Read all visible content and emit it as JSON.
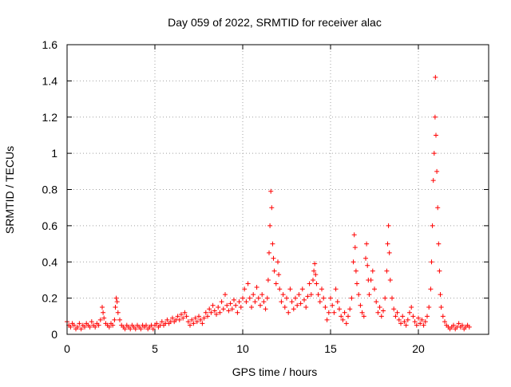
{
  "chart_data": {
    "type": "scatter",
    "title": "Day 059 of 2022, SRMTID for receiver alac",
    "xlabel": "GPS time / hours",
    "ylabel": "SRMTID / TECUs",
    "xlim": [
      0,
      24
    ],
    "ylim": [
      0,
      1.6
    ],
    "x_ticks": [
      0,
      5,
      10,
      15,
      20
    ],
    "x_tick_labels": [
      "0",
      "5",
      "10",
      "15",
      "20"
    ],
    "y_ticks": [
      0,
      0.2,
      0.4,
      0.6,
      0.8,
      1.0,
      1.2,
      1.4,
      1.6
    ],
    "y_tick_labels": [
      "0",
      "0.2",
      "0.4",
      "0.6",
      "0.8",
      "1",
      "1.2",
      "1.4",
      "1.6"
    ],
    "grid": true,
    "marker": "+",
    "marker_color": "#ff0000",
    "series": [
      {
        "name": "SRMTID",
        "points": [
          [
            0.0,
            0.07
          ],
          [
            0.1,
            0.05
          ],
          [
            0.2,
            0.04
          ],
          [
            0.3,
            0.06
          ],
          [
            0.4,
            0.05
          ],
          [
            0.5,
            0.03
          ],
          [
            0.6,
            0.04
          ],
          [
            0.7,
            0.06
          ],
          [
            0.8,
            0.03
          ],
          [
            0.9,
            0.05
          ],
          [
            1.0,
            0.04
          ],
          [
            1.1,
            0.06
          ],
          [
            1.2,
            0.05
          ],
          [
            1.3,
            0.04
          ],
          [
            1.4,
            0.07
          ],
          [
            1.5,
            0.05
          ],
          [
            1.6,
            0.04
          ],
          [
            1.7,
            0.06
          ],
          [
            1.8,
            0.05
          ],
          [
            1.9,
            0.08
          ],
          [
            2.0,
            0.15
          ],
          [
            2.05,
            0.12
          ],
          [
            2.1,
            0.09
          ],
          [
            2.2,
            0.06
          ],
          [
            2.3,
            0.05
          ],
          [
            2.4,
            0.04
          ],
          [
            2.5,
            0.06
          ],
          [
            2.6,
            0.05
          ],
          [
            2.7,
            0.08
          ],
          [
            2.75,
            0.15
          ],
          [
            2.8,
            0.2
          ],
          [
            2.85,
            0.18
          ],
          [
            2.9,
            0.12
          ],
          [
            3.0,
            0.08
          ],
          [
            3.1,
            0.05
          ],
          [
            3.2,
            0.04
          ],
          [
            3.3,
            0.03
          ],
          [
            3.4,
            0.05
          ],
          [
            3.5,
            0.04
          ],
          [
            3.6,
            0.03
          ],
          [
            3.7,
            0.05
          ],
          [
            3.8,
            0.04
          ],
          [
            3.9,
            0.03
          ],
          [
            4.0,
            0.05
          ],
          [
            4.1,
            0.04
          ],
          [
            4.2,
            0.03
          ],
          [
            4.3,
            0.05
          ],
          [
            4.4,
            0.04
          ],
          [
            4.5,
            0.05
          ],
          [
            4.6,
            0.03
          ],
          [
            4.7,
            0.04
          ],
          [
            4.8,
            0.05
          ],
          [
            4.9,
            0.03
          ],
          [
            5.0,
            0.05
          ],
          [
            5.1,
            0.06
          ],
          [
            5.2,
            0.04
          ],
          [
            5.3,
            0.05
          ],
          [
            5.4,
            0.07
          ],
          [
            5.5,
            0.05
          ],
          [
            5.6,
            0.06
          ],
          [
            5.7,
            0.08
          ],
          [
            5.8,
            0.06
          ],
          [
            5.9,
            0.07
          ],
          [
            6.0,
            0.09
          ],
          [
            6.1,
            0.07
          ],
          [
            6.2,
            0.08
          ],
          [
            6.3,
            0.1
          ],
          [
            6.4,
            0.08
          ],
          [
            6.5,
            0.11
          ],
          [
            6.6,
            0.09
          ],
          [
            6.7,
            0.12
          ],
          [
            6.8,
            0.1
          ],
          [
            6.9,
            0.07
          ],
          [
            7.0,
            0.05
          ],
          [
            7.1,
            0.08
          ],
          [
            7.2,
            0.06
          ],
          [
            7.3,
            0.09
          ],
          [
            7.4,
            0.07
          ],
          [
            7.5,
            0.1
          ],
          [
            7.6,
            0.08
          ],
          [
            7.7,
            0.06
          ],
          [
            7.8,
            0.09
          ],
          [
            7.9,
            0.12
          ],
          [
            8.0,
            0.1
          ],
          [
            8.1,
            0.14
          ],
          [
            8.2,
            0.12
          ],
          [
            8.3,
            0.16
          ],
          [
            8.4,
            0.13
          ],
          [
            8.5,
            0.11
          ],
          [
            8.6,
            0.15
          ],
          [
            8.7,
            0.12
          ],
          [
            8.8,
            0.18
          ],
          [
            8.9,
            0.14
          ],
          [
            9.0,
            0.22
          ],
          [
            9.1,
            0.16
          ],
          [
            9.2,
            0.13
          ],
          [
            9.3,
            0.17
          ],
          [
            9.4,
            0.14
          ],
          [
            9.5,
            0.19
          ],
          [
            9.6,
            0.16
          ],
          [
            9.7,
            0.12
          ],
          [
            9.8,
            0.18
          ],
          [
            9.9,
            0.15
          ],
          [
            10.0,
            0.2
          ],
          [
            10.1,
            0.25
          ],
          [
            10.2,
            0.18
          ],
          [
            10.3,
            0.28
          ],
          [
            10.4,
            0.2
          ],
          [
            10.5,
            0.15
          ],
          [
            10.6,
            0.22
          ],
          [
            10.7,
            0.18
          ],
          [
            10.8,
            0.26
          ],
          [
            10.9,
            0.2
          ],
          [
            11.0,
            0.16
          ],
          [
            11.1,
            0.22
          ],
          [
            11.2,
            0.18
          ],
          [
            11.3,
            0.14
          ],
          [
            11.4,
            0.2
          ],
          [
            11.45,
            0.3
          ],
          [
            11.5,
            0.45
          ],
          [
            11.55,
            0.6
          ],
          [
            11.6,
            0.79
          ],
          [
            11.65,
            0.7
          ],
          [
            11.7,
            0.5
          ],
          [
            11.75,
            0.42
          ],
          [
            11.8,
            0.35
          ],
          [
            11.9,
            0.28
          ],
          [
            12.0,
            0.4
          ],
          [
            12.05,
            0.33
          ],
          [
            12.1,
            0.25
          ],
          [
            12.2,
            0.18
          ],
          [
            12.3,
            0.22
          ],
          [
            12.4,
            0.15
          ],
          [
            12.5,
            0.2
          ],
          [
            12.6,
            0.12
          ],
          [
            12.7,
            0.25
          ],
          [
            12.8,
            0.18
          ],
          [
            12.9,
            0.14
          ],
          [
            13.0,
            0.2
          ],
          [
            13.1,
            0.16
          ],
          [
            13.2,
            0.22
          ],
          [
            13.3,
            0.17
          ],
          [
            13.4,
            0.25
          ],
          [
            13.5,
            0.19
          ],
          [
            13.6,
            0.15
          ],
          [
            13.7,
            0.21
          ],
          [
            13.8,
            0.28
          ],
          [
            13.9,
            0.22
          ],
          [
            14.0,
            0.3
          ],
          [
            14.05,
            0.35
          ],
          [
            14.1,
            0.39
          ],
          [
            14.15,
            0.33
          ],
          [
            14.2,
            0.28
          ],
          [
            14.3,
            0.22
          ],
          [
            14.4,
            0.18
          ],
          [
            14.5,
            0.25
          ],
          [
            14.6,
            0.2
          ],
          [
            14.7,
            0.15
          ],
          [
            14.8,
            0.08
          ],
          [
            14.9,
            0.12
          ],
          [
            15.0,
            0.2
          ],
          [
            15.1,
            0.16
          ],
          [
            15.2,
            0.12
          ],
          [
            15.3,
            0.25
          ],
          [
            15.4,
            0.18
          ],
          [
            15.5,
            0.14
          ],
          [
            15.6,
            0.1
          ],
          [
            15.7,
            0.08
          ],
          [
            15.8,
            0.12
          ],
          [
            15.9,
            0.06
          ],
          [
            16.0,
            0.1
          ],
          [
            16.1,
            0.14
          ],
          [
            16.2,
            0.2
          ],
          [
            16.3,
            0.4
          ],
          [
            16.35,
            0.55
          ],
          [
            16.4,
            0.48
          ],
          [
            16.45,
            0.35
          ],
          [
            16.5,
            0.28
          ],
          [
            16.6,
            0.22
          ],
          [
            16.7,
            0.16
          ],
          [
            16.8,
            0.12
          ],
          [
            16.9,
            0.1
          ],
          [
            17.0,
            0.42
          ],
          [
            17.05,
            0.5
          ],
          [
            17.1,
            0.38
          ],
          [
            17.15,
            0.3
          ],
          [
            17.2,
            0.22
          ],
          [
            17.3,
            0.3
          ],
          [
            17.4,
            0.35
          ],
          [
            17.5,
            0.25
          ],
          [
            17.6,
            0.18
          ],
          [
            17.7,
            0.12
          ],
          [
            17.8,
            0.15
          ],
          [
            17.9,
            0.1
          ],
          [
            18.0,
            0.13
          ],
          [
            18.1,
            0.2
          ],
          [
            18.2,
            0.35
          ],
          [
            18.25,
            0.5
          ],
          [
            18.3,
            0.6
          ],
          [
            18.35,
            0.45
          ],
          [
            18.4,
            0.3
          ],
          [
            18.5,
            0.2
          ],
          [
            18.6,
            0.14
          ],
          [
            18.7,
            0.1
          ],
          [
            18.8,
            0.12
          ],
          [
            18.9,
            0.08
          ],
          [
            19.0,
            0.06
          ],
          [
            19.1,
            0.1
          ],
          [
            19.2,
            0.07
          ],
          [
            19.3,
            0.05
          ],
          [
            19.4,
            0.08
          ],
          [
            19.5,
            0.12
          ],
          [
            19.6,
            0.15
          ],
          [
            19.7,
            0.1
          ],
          [
            19.8,
            0.07
          ],
          [
            19.9,
            0.05
          ],
          [
            20.0,
            0.09
          ],
          [
            20.1,
            0.06
          ],
          [
            20.2,
            0.08
          ],
          [
            20.3,
            0.05
          ],
          [
            20.4,
            0.07
          ],
          [
            20.5,
            0.1
          ],
          [
            20.6,
            0.15
          ],
          [
            20.7,
            0.25
          ],
          [
            20.75,
            0.4
          ],
          [
            20.8,
            0.6
          ],
          [
            20.85,
            0.85
          ],
          [
            20.9,
            1.0
          ],
          [
            20.95,
            1.2
          ],
          [
            20.97,
            1.42
          ],
          [
            21.0,
            1.1
          ],
          [
            21.05,
            0.9
          ],
          [
            21.1,
            0.7
          ],
          [
            21.15,
            0.5
          ],
          [
            21.2,
            0.35
          ],
          [
            21.25,
            0.22
          ],
          [
            21.3,
            0.15
          ],
          [
            21.4,
            0.1
          ],
          [
            21.5,
            0.07
          ],
          [
            21.6,
            0.05
          ],
          [
            21.7,
            0.04
          ],
          [
            21.8,
            0.03
          ],
          [
            21.9,
            0.04
          ],
          [
            22.0,
            0.05
          ],
          [
            22.1,
            0.03
          ],
          [
            22.2,
            0.04
          ],
          [
            22.3,
            0.06
          ],
          [
            22.4,
            0.04
          ],
          [
            22.5,
            0.05
          ],
          [
            22.6,
            0.03
          ],
          [
            22.7,
            0.04
          ],
          [
            22.8,
            0.05
          ],
          [
            22.9,
            0.04
          ]
        ]
      }
    ]
  }
}
